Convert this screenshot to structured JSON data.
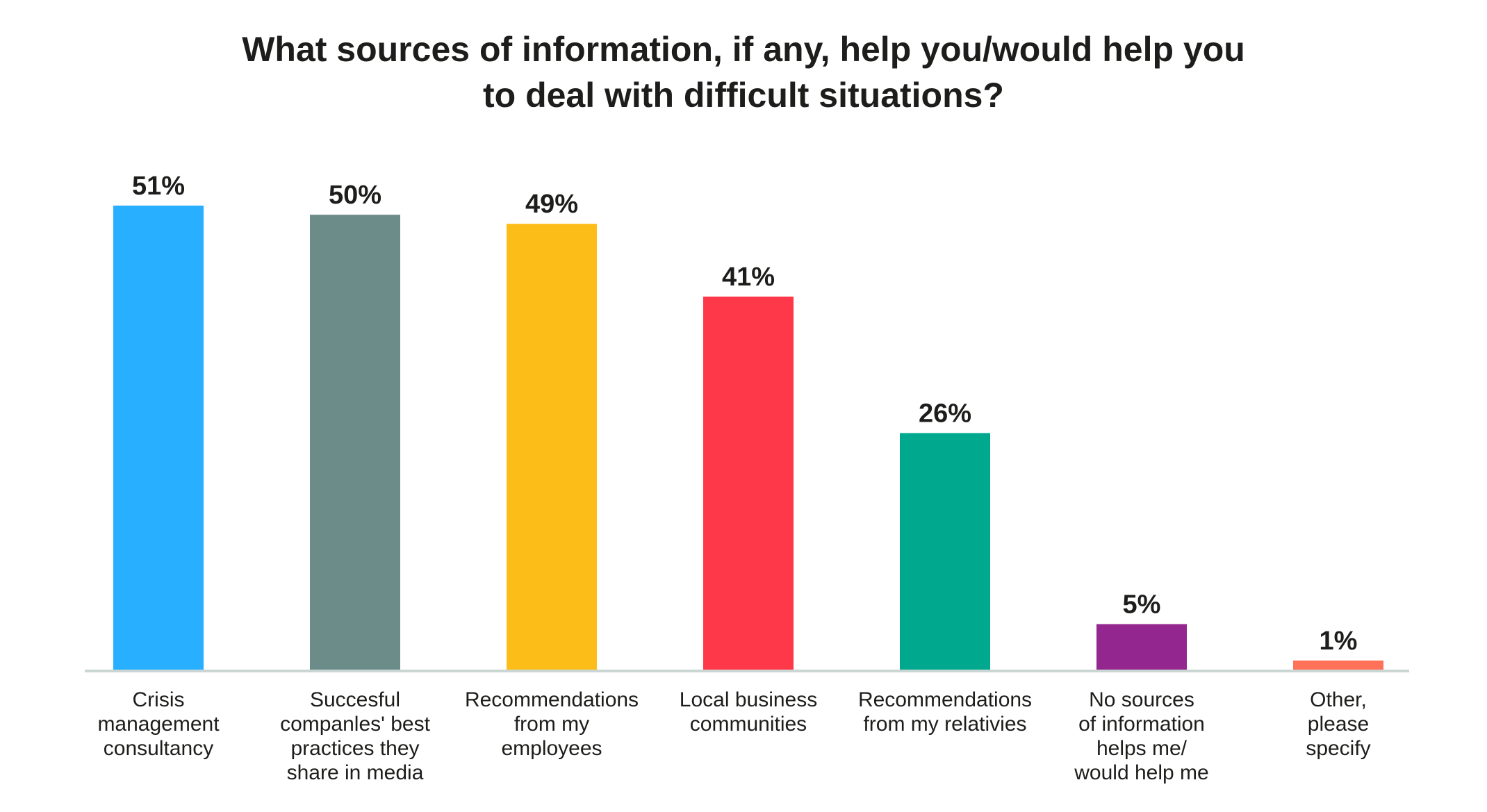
{
  "chart_data": {
    "type": "bar",
    "title": [
      "What sources of information, if any, help you/would help you",
      "to deal with difficult situations?"
    ],
    "categories": [
      [
        "Crisis",
        "management",
        "consultancy"
      ],
      [
        "Succesful",
        "companles' best",
        "practices they",
        "share in media"
      ],
      [
        "Recommendations",
        "from my",
        "employees"
      ],
      [
        "Local business",
        "communities"
      ],
      [
        "Recommendations",
        "from my relativies"
      ],
      [
        "No sources",
        "of information",
        "helps me/",
        "would help me"
      ],
      [
        "Other,",
        "please",
        "specify"
      ]
    ],
    "values": [
      51,
      50,
      49,
      41,
      26,
      5,
      1
    ],
    "value_labels": [
      "51%",
      "50%",
      "49%",
      "41%",
      "26%",
      "5%",
      "1%"
    ],
    "colors": [
      "#29AFFF",
      "#6C8C8A",
      "#FDBD18",
      "#FF3849",
      "#00A88E",
      "#93278F",
      "#FF7159"
    ],
    "axis_color": "#C9D6D4",
    "ylim": [
      0,
      51
    ],
    "grid": false,
    "legend": "none"
  }
}
